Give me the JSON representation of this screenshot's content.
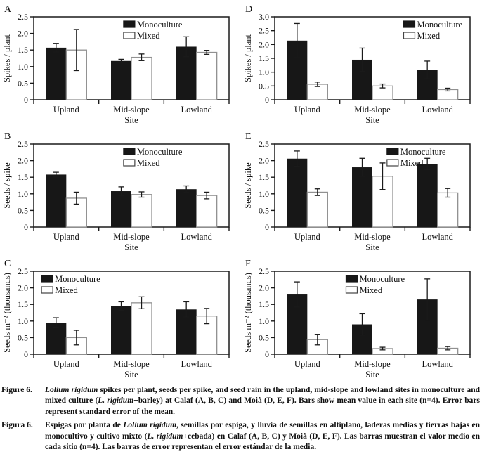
{
  "colors": {
    "monoculture_fill": "#171717",
    "mixed_fill": "#ffffff",
    "mixed_stroke": "#919191",
    "axis": "#1a1a1a",
    "error": "#1a1a1a"
  },
  "chart_data": [
    {
      "panel_label": "A",
      "type": "bar",
      "ylabel": "Spikes / plant",
      "xlabel": "Site",
      "ylim": [
        0,
        2.5
      ],
      "yticks": [
        0,
        0.5,
        1.0,
        1.5,
        2.0,
        2.5
      ],
      "categories": [
        "Upland",
        "Mid-slope",
        "Lowland"
      ],
      "legend_position": "top-right-inside",
      "legend_x": 0.46,
      "series": [
        {
          "name": "Monoculture",
          "values": [
            1.57,
            1.17,
            1.6
          ],
          "errors": [
            0.13,
            0.05,
            0.3
          ]
        },
        {
          "name": "Mixed",
          "values": [
            1.5,
            1.28,
            1.43
          ],
          "errors": [
            0.62,
            0.1,
            0.06
          ]
        }
      ]
    },
    {
      "panel_label": "B",
      "type": "bar",
      "ylabel": "Seeds / spike",
      "xlabel": "Site",
      "ylim": [
        0,
        2.5
      ],
      "yticks": [
        0,
        0.5,
        1.0,
        1.5,
        2.0,
        2.5
      ],
      "categories": [
        "Upland",
        "Mid-slope",
        "Lowland"
      ],
      "legend_position": "top-right-inside",
      "legend_x": 0.46,
      "series": [
        {
          "name": "Monoculture",
          "values": [
            1.58,
            1.08,
            1.14
          ],
          "errors": [
            0.07,
            0.13,
            0.1
          ]
        },
        {
          "name": "Mixed",
          "values": [
            0.87,
            0.98,
            0.95
          ],
          "errors": [
            0.18,
            0.08,
            0.1
          ]
        }
      ]
    },
    {
      "panel_label": "C",
      "type": "bar",
      "ylabel": "Seeds m⁻² (thousands)",
      "xlabel": "Site",
      "ylim": [
        0,
        2.5
      ],
      "yticks": [
        0,
        0.5,
        1.0,
        1.5,
        2.0,
        2.5
      ],
      "categories": [
        "Upland",
        "Mid-slope",
        "Lowland"
      ],
      "legend_position": "top-left-inside",
      "legend_x": 0.04,
      "series": [
        {
          "name": "Monoculture",
          "values": [
            0.95,
            1.45,
            1.35
          ],
          "errors": [
            0.15,
            0.13,
            0.23
          ]
        },
        {
          "name": "Mixed",
          "values": [
            0.5,
            1.55,
            1.15
          ],
          "errors": [
            0.22,
            0.18,
            0.23
          ]
        }
      ]
    },
    {
      "panel_label": "D",
      "type": "bar",
      "ylabel": "Spikes / plant",
      "xlabel": "Site",
      "ylim": [
        0,
        3.0
      ],
      "yticks": [
        0,
        0.5,
        1.0,
        1.5,
        2.0,
        2.5,
        3.0
      ],
      "categories": [
        "Upland",
        "Mid-slope",
        "Lowland"
      ],
      "legend_position": "top-right-inside",
      "legend_x": 0.66,
      "series": [
        {
          "name": "Monoculture",
          "values": [
            2.14,
            1.45,
            1.08
          ],
          "errors": [
            0.62,
            0.42,
            0.32
          ]
        },
        {
          "name": "Mixed",
          "values": [
            0.56,
            0.5,
            0.37
          ],
          "errors": [
            0.08,
            0.07,
            0.05
          ]
        }
      ]
    },
    {
      "panel_label": "E",
      "type": "bar",
      "ylabel": "Seeds / spike",
      "xlabel": "Site",
      "ylim": [
        0,
        2.5
      ],
      "yticks": [
        0,
        0.5,
        1.0,
        1.5,
        2.0,
        2.5
      ],
      "categories": [
        "Upland",
        "Mid-slope",
        "Lowland"
      ],
      "legend_position": "top-right-inside",
      "legend_x": 0.575,
      "series": [
        {
          "name": "Monoculture",
          "values": [
            2.06,
            1.8,
            1.9
          ],
          "errors": [
            0.23,
            0.27,
            0.17
          ]
        },
        {
          "name": "Mixed",
          "values": [
            1.05,
            1.53,
            1.03
          ],
          "errors": [
            0.1,
            0.4,
            0.13
          ]
        }
      ]
    },
    {
      "panel_label": "F",
      "type": "bar",
      "ylabel": "Seeds m⁻² (thousands)",
      "xlabel": "Site",
      "ylim": [
        0,
        2.5
      ],
      "yticks": [
        0,
        0.5,
        1.0,
        1.5,
        2.0,
        2.5
      ],
      "categories": [
        "Upland",
        "Mid-slope",
        "Lowland"
      ],
      "legend_position": "top-center-inside",
      "legend_x": 0.365,
      "series": [
        {
          "name": "Monoculture",
          "values": [
            1.8,
            0.9,
            1.65
          ],
          "errors": [
            0.38,
            0.32,
            0.62
          ]
        },
        {
          "name": "Mixed",
          "values": [
            0.44,
            0.17,
            0.18
          ],
          "errors": [
            0.16,
            0.04,
            0.05
          ]
        }
      ]
    }
  ],
  "captions": [
    {
      "label": "Figure 6.",
      "parts": [
        {
          "t": "Lolium rigidum",
          "i": true
        },
        {
          "t": " spikes per plant, seeds per spike, and seed rain in the upland, mid-slope and lowland sites in monoculture and mixed culture (",
          "i": false
        },
        {
          "t": "L. rigidum",
          "i": true
        },
        {
          "t": "+barley) at Calaf (A, B, C) and Moià (D, E, F). Bars show mean value in each site (n=4). Error bars represent standard error of the mean.",
          "i": false
        }
      ]
    },
    {
      "label": "Figura 6.",
      "parts": [
        {
          "t": "Espigas por planta de ",
          "i": false
        },
        {
          "t": "Lolium rigidum",
          "i": true
        },
        {
          "t": ", semillas por espiga, y lluvia de semillas en altiplano, laderas medias y tierras bajas en monocultivo y cultivo mixto (",
          "i": false
        },
        {
          "t": "L. rigidum",
          "i": true
        },
        {
          "t": "+cebada) en Calaf (A, B, C) y Moià (D, E, F). Las barras muestran el valor medio en cada sitio (n=4). Las barras de error representan el error estándar de la media.",
          "i": false
        }
      ]
    }
  ]
}
